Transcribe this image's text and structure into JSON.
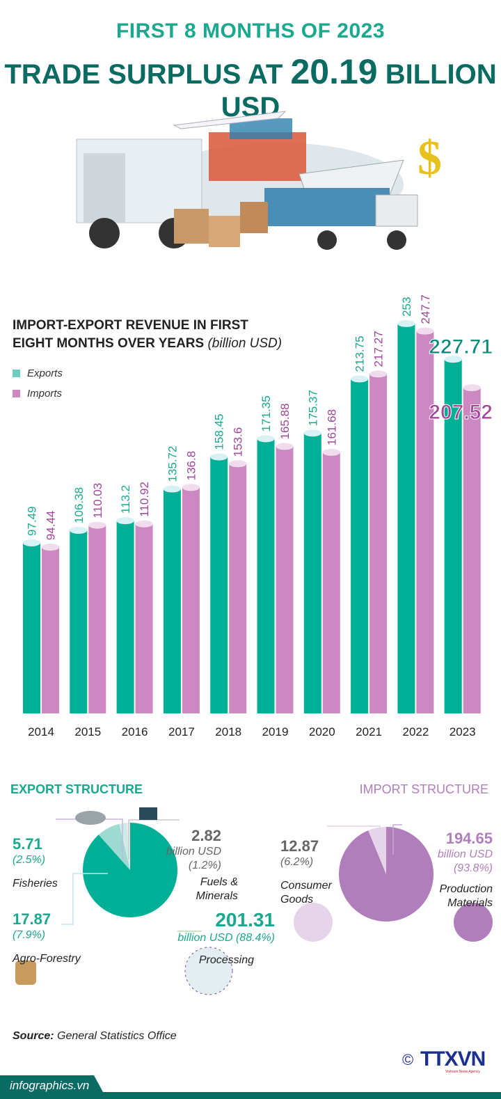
{
  "header": {
    "line1": "FIRST 8 MONTHS OF 2023",
    "line2_pre": "TRADE SURPLUS AT ",
    "line2_value": "20.19",
    "line2_post": " BILLION USD"
  },
  "colors": {
    "exports": "#00b096",
    "imports": "#cc88c0",
    "teal_dark": "#0a6b63",
    "import_pie": "#b07fbb"
  },
  "chart_data": {
    "type": "bar",
    "title": "IMPORT-EXPORT REVENUE IN FIRST EIGHT MONTHS OVER YEARS",
    "unit": "(billion USD)",
    "categories": [
      "2014",
      "2015",
      "2016",
      "2017",
      "2018",
      "2019",
      "2020",
      "2021",
      "2022",
      "2023"
    ],
    "series": [
      {
        "name": "Exports",
        "values": [
          97.49,
          106.38,
          113.2,
          135.72,
          158.45,
          171.35,
          175.37,
          213.75,
          253,
          227.71
        ],
        "labels": [
          "97.49",
          "106.38",
          "113.2",
          "135.72",
          "158.45",
          "171.35",
          "175.37",
          "213.75",
          "253",
          "227.71"
        ]
      },
      {
        "name": "Imports",
        "values": [
          94.44,
          110.03,
          110.92,
          136.8,
          153.6,
          165.88,
          161.68,
          217.27,
          247.7,
          207.52
        ],
        "labels": [
          "94.44",
          "110.03",
          "110.92",
          "136.8",
          "153.6",
          "165.88",
          "161.68",
          "217.27",
          "247.7",
          "207.52"
        ]
      }
    ],
    "grid": false,
    "legend": "top-left"
  },
  "export_structure": {
    "title": "EXPORT STRUCTURE",
    "slices": [
      {
        "name": "Processing",
        "value": "201.31",
        "unit": "billion USD",
        "pct": "(88.4%)",
        "share": 88.4,
        "color": "#00b096"
      },
      {
        "name": "Agro-Forestry",
        "value": "17.87",
        "pct": "(7.9%)",
        "share": 7.9,
        "color": "#9ed9d2"
      },
      {
        "name": "Fisheries",
        "value": "5.71",
        "pct": "(2.5%)",
        "share": 2.5,
        "color": "#cdebe7"
      },
      {
        "name": "Fuels & Minerals",
        "name_line1": "Fuels &",
        "name_line2": "Minerals",
        "value": "2.82",
        "unit": "billion USD",
        "pct": "(1.2%)",
        "share": 1.2,
        "color": "#f6e4ea"
      }
    ]
  },
  "import_structure": {
    "title": "IMPORT STRUCTURE",
    "slices": [
      {
        "name": "Production Materials",
        "name_line1": "Production",
        "name_line2": "Materials",
        "value": "194.65",
        "unit": "billion USD",
        "pct": "(93.8%)",
        "share": 93.8,
        "color": "#b07fbb"
      },
      {
        "name": "Consumer Goods",
        "name_line1": "Consumer",
        "name_line2": "Goods",
        "value": "12.87",
        "pct": "(6.2%)",
        "share": 6.2,
        "color": "#e6d4ea"
      }
    ]
  },
  "footer": {
    "source_label": "Source:",
    "source_text": " General Statistics Office",
    "site": "infographics.vn",
    "logo": "TTXVN",
    "logo_sub": "Vietnam News Agency",
    "copyright": "©"
  }
}
